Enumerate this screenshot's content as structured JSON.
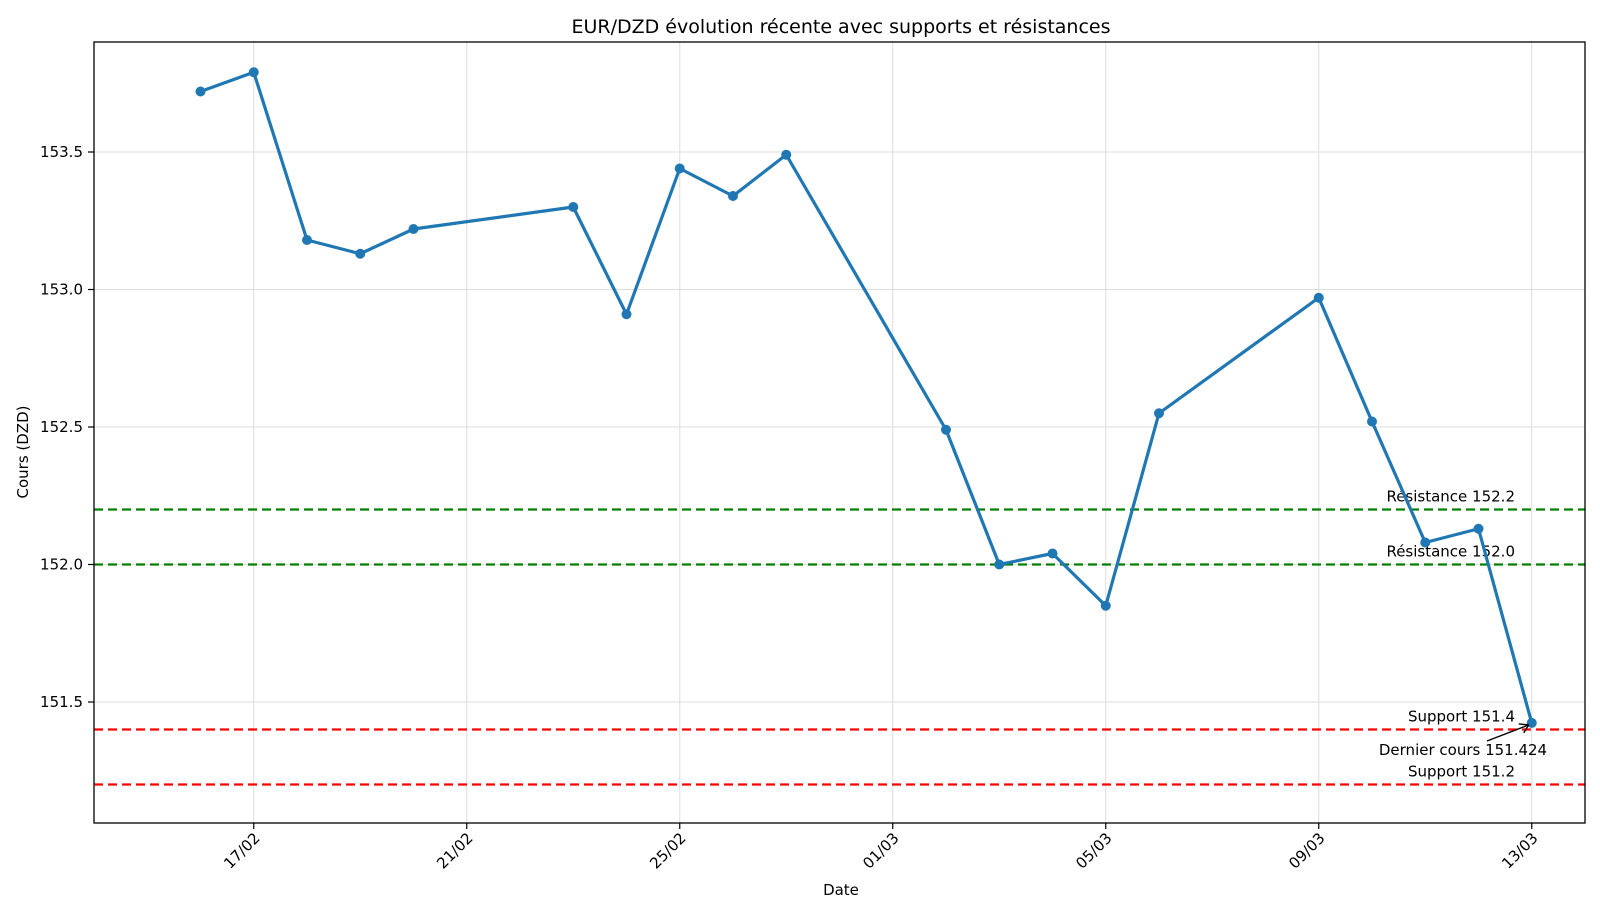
{
  "chart_data": {
    "type": "line",
    "title": "EUR/DZD évolution récente avec supports et résistances",
    "xlabel": "Date",
    "ylabel": "Cours (DZD)",
    "grid": true,
    "x_ticks": [
      {
        "date": "2025-02-17",
        "label": "17/02"
      },
      {
        "date": "2025-02-21",
        "label": "21/02"
      },
      {
        "date": "2025-02-25",
        "label": "25/02"
      },
      {
        "date": "2025-03-01",
        "label": "01/03"
      },
      {
        "date": "2025-03-05",
        "label": "05/03"
      },
      {
        "date": "2025-03-09",
        "label": "09/03"
      },
      {
        "date": "2025-03-13",
        "label": "13/03"
      }
    ],
    "y_ticks": [
      151.5,
      152.0,
      152.5,
      153.0,
      153.5
    ],
    "xlim": [
      "2025-02-14",
      "2025-03-14"
    ],
    "ylim": [
      151.06,
      153.9
    ],
    "series": [
      {
        "color": "#1f77b4",
        "points": [
          {
            "x": "2025-02-16",
            "y": 153.72
          },
          {
            "x": "2025-02-17",
            "y": 153.79
          },
          {
            "x": "2025-02-18",
            "y": 153.18
          },
          {
            "x": "2025-02-19",
            "y": 153.13
          },
          {
            "x": "2025-02-20",
            "y": 153.22
          },
          {
            "x": "2025-02-23",
            "y": 153.3
          },
          {
            "x": "2025-02-24",
            "y": 152.91
          },
          {
            "x": "2025-02-25",
            "y": 153.44
          },
          {
            "x": "2025-02-26",
            "y": 153.34
          },
          {
            "x": "2025-02-27",
            "y": 153.49
          },
          {
            "x": "2025-03-02",
            "y": 152.49
          },
          {
            "x": "2025-03-03",
            "y": 152.0
          },
          {
            "x": "2025-03-04",
            "y": 152.04
          },
          {
            "x": "2025-03-05",
            "y": 151.85
          },
          {
            "x": "2025-03-06",
            "y": 152.55
          },
          {
            "x": "2025-03-09",
            "y": 152.97
          },
          {
            "x": "2025-03-10",
            "y": 152.52
          },
          {
            "x": "2025-03-11",
            "y": 152.08
          },
          {
            "x": "2025-03-12",
            "y": 152.13
          },
          {
            "x": "2025-03-13",
            "y": 151.424
          }
        ]
      }
    ],
    "levels": [
      {
        "kind": "resistance",
        "value": 152.2,
        "label": "Résistance 152.2",
        "color": "#008000"
      },
      {
        "kind": "resistance",
        "value": 152.0,
        "label": "Résistance 152.0",
        "color": "#008000"
      },
      {
        "kind": "support",
        "value": 151.4,
        "label": "Support 151.4",
        "color": "#ff0000"
      },
      {
        "kind": "support",
        "value": 151.2,
        "label": "Support 151.2",
        "color": "#ff0000"
      }
    ],
    "annotation": {
      "text": "Dernier cours 151.424",
      "x": "2025-03-13",
      "y": 151.424
    }
  }
}
